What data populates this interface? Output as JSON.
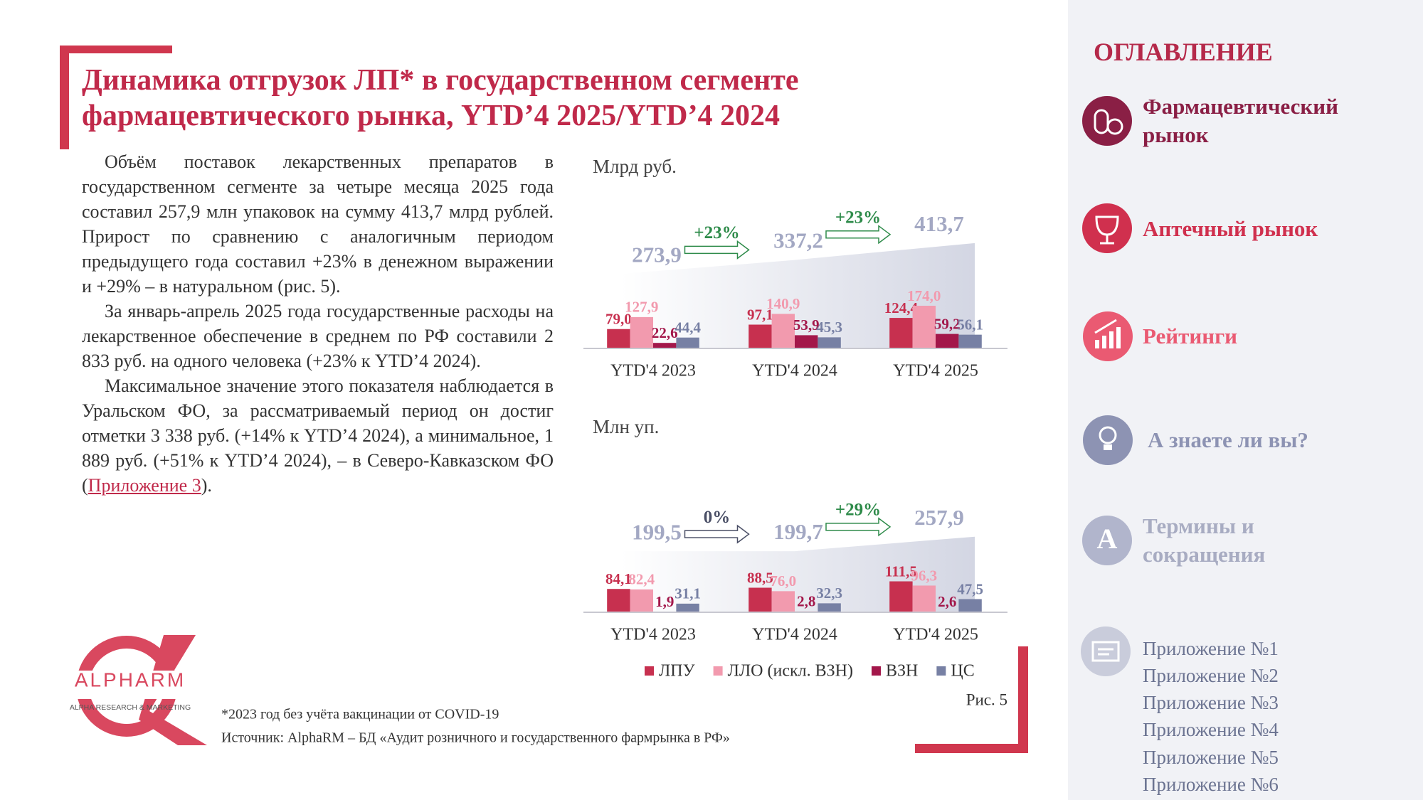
{
  "header": {
    "title": "Динамика отгрузок ЛП* в государственном сегменте фармацевтического рынка, YTD’4 2025/YTD’4 2024"
  },
  "body": {
    "paragraphs": [
      {
        "text": "Объём поставок лекарственных препаратов в государственном сегменте за четыре месяца 2025 года составил 257,9 млн упаковок на сумму 413,7 млрд рублей. Прирост по сравнению с аналогичным периодом предыдущего года составил +23% в денежном выражении и +29% – в натуральном (рис. 5)."
      },
      {
        "text": "За январь-апрель 2025 года государственные расходы на лекарственное обеспечение в среднем по РФ составили 2 833 руб. на одного человека (+23% к YTD’4 2024)."
      },
      {
        "text": "Максимальное значение этого показателя наблюдается в Уральском ФО, за рассматриваемый период он достиг отметки 3 338 руб. (+14% к YTD’4 2024), а минимальное, 1 889 руб. (+51% к YTD’4 2024), – в Северо-Кавказском ФО (",
        "link": "Приложение 3",
        "after": ")."
      }
    ]
  },
  "chart_data": [
    {
      "type": "bar",
      "unit": "Млрд руб.",
      "categories": [
        "YTD'4 2023",
        "YTD'4 2024",
        "YTD'4 2025"
      ],
      "series": [
        {
          "values": [
            79.0,
            97.1,
            124.4
          ],
          "value_labels": [
            "79,0",
            "97,1",
            "124,4"
          ]
        },
        {
          "values": [
            127.9,
            140.9,
            174.0
          ],
          "value_labels": [
            "127,9",
            "140,9",
            "174,0"
          ]
        },
        {
          "values": [
            22.6,
            53.9,
            59.2
          ],
          "value_labels": [
            "22,6",
            "53,9",
            "59,2"
          ]
        },
        {
          "values": [
            44.4,
            45.3,
            56.1
          ],
          "value_labels": [
            "44,4",
            "45,3",
            "56,1"
          ]
        }
      ],
      "totals": [
        273.9,
        337.2,
        413.7
      ],
      "total_labels": [
        "273,9",
        "337,2",
        "413,7"
      ],
      "growth": [
        {
          "label": "+23%",
          "color": "#2e8b4a"
        },
        {
          "label": "+23%",
          "color": "#2e8b4a"
        }
      ]
    },
    {
      "type": "bar",
      "unit": "Млн уп.",
      "categories": [
        "YTD'4 2023",
        "YTD'4 2024",
        "YTD'4 2025"
      ],
      "series": [
        {
          "values": [
            84.1,
            88.5,
            111.5
          ],
          "value_labels": [
            "84,1",
            "88,5",
            "111,5"
          ]
        },
        {
          "values": [
            82.4,
            76.0,
            96.3
          ],
          "value_labels": [
            "82,4",
            "76,0",
            "96,3"
          ]
        },
        {
          "values": [
            1.9,
            2.8,
            2.6
          ],
          "value_labels": [
            "1,9",
            "2,8",
            "2,6"
          ]
        },
        {
          "values": [
            31.1,
            32.3,
            47.5
          ],
          "value_labels": [
            "31,1",
            "32,3",
            "47,5"
          ]
        }
      ],
      "totals": [
        199.5,
        199.7,
        257.9
      ],
      "total_labels": [
        "199,5",
        "199,7",
        "257,9"
      ],
      "growth": [
        {
          "label": "0%",
          "color": "#4a4f66"
        },
        {
          "label": "+29%",
          "color": "#2e8b4a"
        }
      ]
    }
  ],
  "legend": [
    {
      "name": "ЛПУ",
      "color": "#c7304f"
    },
    {
      "name": "ЛЛО (искл. ВЗН)",
      "color": "#f29aae"
    },
    {
      "name": "ВЗН",
      "color": "#a3174a"
    },
    {
      "name": "ЦС",
      "color": "#7780a4"
    }
  ],
  "figure_label": "Рис. 5",
  "footnote": "*2023 год без учёта вакцинации от COVID-19",
  "source": "Источник: AlphaRM – БД «Аудит розничного и государственного фармрынка в РФ»",
  "logo": {
    "name": "ALPHARM",
    "tagline": "ALPHA RESEARCH & MARKETING"
  },
  "sidebar": {
    "title": "ОГЛАВЛЕНИЕ",
    "items": [
      "Фармацевтический рынок",
      "Аптечный рынок",
      "Рейтинги",
      "А знаете ли вы?",
      "Термины и сокращения"
    ],
    "appendices": [
      "Приложение №1",
      "Приложение №2",
      "Приложение №3",
      "Приложение №4",
      "Приложение №5",
      "Приложение №6"
    ]
  }
}
